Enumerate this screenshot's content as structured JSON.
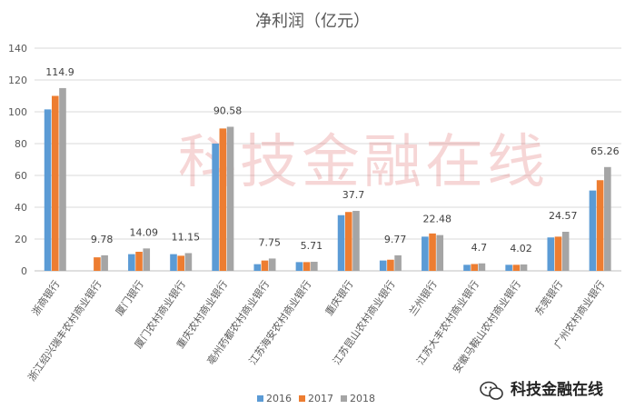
{
  "chart_data": {
    "type": "bar",
    "title": "净利润（亿元）",
    "categories": [
      "浙商银行",
      "浙江绍兴瑞丰农村商业银行",
      "厦门银行",
      "厦门农村商业银行",
      "重庆农村商业银行",
      "亳州药都农村商业银行",
      "江苏海安农村商业银行",
      "重庆银行",
      "江苏昆山农村商业银行",
      "兰州银行",
      "江苏大丰农村商业银行",
      "安徽马鞍山农村商业银行",
      "东莞银行",
      "广州农村商业银行"
    ],
    "series": [
      {
        "name": "2016",
        "color": "#5b9bd5",
        "values": [
          101.5,
          null,
          10.5,
          10.5,
          80,
          4.2,
          5.5,
          35,
          6.5,
          21.5,
          3.8,
          3.8,
          21,
          50.5
        ]
      },
      {
        "name": "2017",
        "color": "#ed7d31",
        "values": [
          110,
          8.5,
          12,
          9.5,
          89.5,
          6.5,
          5.5,
          37,
          7,
          23.5,
          4.3,
          3.8,
          21.5,
          57
        ]
      },
      {
        "name": "2018",
        "color": "#a5a5a5",
        "values": [
          114.9,
          9.78,
          14.09,
          11.15,
          90.58,
          7.75,
          5.71,
          37.7,
          9.77,
          22.48,
          4.7,
          4.02,
          24.57,
          65.26
        ]
      }
    ],
    "data_labels": [
      "114.9",
      "9.78",
      "14.09",
      "11.15",
      "90.58",
      "7.75",
      "5.71",
      "37.7",
      "9.77",
      "22.48",
      "4.7",
      "4.02",
      "24.57",
      "65.26"
    ],
    "y_ticks": [
      "0",
      "20",
      "40",
      "60",
      "80",
      "100",
      "120",
      "140"
    ],
    "ylim": [
      0,
      140
    ],
    "grid": true,
    "legend_position": "bottom-center",
    "xlabel": "",
    "ylabel": ""
  },
  "watermark": "科技金融在线",
  "brand": {
    "label": "科技金融在线",
    "icon": "wechat-icon"
  }
}
